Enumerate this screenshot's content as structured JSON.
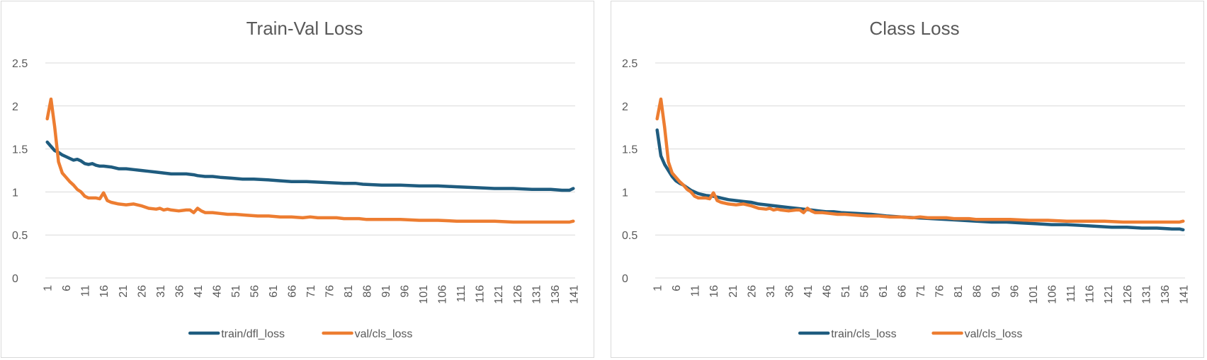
{
  "chart_data": [
    {
      "type": "line",
      "title": "Train-Val Loss",
      "xlabel": "",
      "ylabel": "",
      "ylim": [
        0,
        2.5
      ],
      "y_ticks": [
        "0",
        "0.5",
        "1",
        "1.5",
        "2",
        "2.5"
      ],
      "x_range": [
        1,
        141
      ],
      "x_tick_labels": [
        "1",
        "6",
        "11",
        "16",
        "21",
        "26",
        "31",
        "36",
        "41",
        "46",
        "51",
        "56",
        "61",
        "66",
        "71",
        "76",
        "81",
        "86",
        "91",
        "96",
        "101",
        "106",
        "111",
        "116",
        "121",
        "126",
        "131",
        "136",
        "141"
      ],
      "grid": "horizontal",
      "legend": "bottom",
      "series": [
        {
          "name": "train/dfl_loss",
          "color": "#1f5c7f",
          "points": [
            [
              1,
              1.58
            ],
            [
              2,
              1.53
            ],
            [
              3,
              1.48
            ],
            [
              4,
              1.46
            ],
            [
              5,
              1.43
            ],
            [
              6,
              1.41
            ],
            [
              7,
              1.39
            ],
            [
              8,
              1.37
            ],
            [
              9,
              1.38
            ],
            [
              10,
              1.36
            ],
            [
              11,
              1.33
            ],
            [
              12,
              1.32
            ],
            [
              13,
              1.33
            ],
            [
              14,
              1.31
            ],
            [
              15,
              1.3
            ],
            [
              16,
              1.3
            ],
            [
              18,
              1.29
            ],
            [
              20,
              1.27
            ],
            [
              22,
              1.27
            ],
            [
              24,
              1.26
            ],
            [
              26,
              1.25
            ],
            [
              28,
              1.24
            ],
            [
              30,
              1.23
            ],
            [
              32,
              1.22
            ],
            [
              34,
              1.21
            ],
            [
              36,
              1.21
            ],
            [
              38,
              1.21
            ],
            [
              40,
              1.2
            ],
            [
              41,
              1.19
            ],
            [
              43,
              1.18
            ],
            [
              45,
              1.18
            ],
            [
              47,
              1.17
            ],
            [
              50,
              1.16
            ],
            [
              53,
              1.15
            ],
            [
              56,
              1.15
            ],
            [
              60,
              1.14
            ],
            [
              63,
              1.13
            ],
            [
              66,
              1.12
            ],
            [
              70,
              1.12
            ],
            [
              75,
              1.11
            ],
            [
              80,
              1.1
            ],
            [
              83,
              1.1
            ],
            [
              85,
              1.09
            ],
            [
              90,
              1.08
            ],
            [
              95,
              1.08
            ],
            [
              100,
              1.07
            ],
            [
              105,
              1.07
            ],
            [
              110,
              1.06
            ],
            [
              115,
              1.05
            ],
            [
              120,
              1.04
            ],
            [
              125,
              1.04
            ],
            [
              130,
              1.03
            ],
            [
              135,
              1.03
            ],
            [
              138,
              1.02
            ],
            [
              140,
              1.02
            ],
            [
              141,
              1.04
            ]
          ]
        },
        {
          "name": "val/cls_loss",
          "color": "#ed7d31",
          "points": [
            [
              1,
              1.85
            ],
            [
              2,
              2.08
            ],
            [
              3,
              1.75
            ],
            [
              4,
              1.35
            ],
            [
              5,
              1.22
            ],
            [
              6,
              1.17
            ],
            [
              7,
              1.12
            ],
            [
              8,
              1.08
            ],
            [
              9,
              1.03
            ],
            [
              10,
              1.0
            ],
            [
              11,
              0.95
            ],
            [
              12,
              0.93
            ],
            [
              14,
              0.93
            ],
            [
              15,
              0.92
            ],
            [
              16,
              0.99
            ],
            [
              17,
              0.9
            ],
            [
              18,
              0.88
            ],
            [
              20,
              0.86
            ],
            [
              22,
              0.85
            ],
            [
              24,
              0.86
            ],
            [
              26,
              0.84
            ],
            [
              28,
              0.81
            ],
            [
              30,
              0.8
            ],
            [
              31,
              0.81
            ],
            [
              32,
              0.79
            ],
            [
              33,
              0.8
            ],
            [
              34,
              0.79
            ],
            [
              36,
              0.78
            ],
            [
              38,
              0.79
            ],
            [
              39,
              0.79
            ],
            [
              40,
              0.76
            ],
            [
              41,
              0.81
            ],
            [
              42,
              0.78
            ],
            [
              43,
              0.76
            ],
            [
              45,
              0.76
            ],
            [
              47,
              0.75
            ],
            [
              49,
              0.74
            ],
            [
              51,
              0.74
            ],
            [
              54,
              0.73
            ],
            [
              57,
              0.72
            ],
            [
              60,
              0.72
            ],
            [
              63,
              0.71
            ],
            [
              66,
              0.71
            ],
            [
              69,
              0.7
            ],
            [
              71,
              0.71
            ],
            [
              73,
              0.7
            ],
            [
              75,
              0.7
            ],
            [
              78,
              0.7
            ],
            [
              80,
              0.69
            ],
            [
              84,
              0.69
            ],
            [
              86,
              0.68
            ],
            [
              90,
              0.68
            ],
            [
              95,
              0.68
            ],
            [
              100,
              0.67
            ],
            [
              105,
              0.67
            ],
            [
              110,
              0.66
            ],
            [
              115,
              0.66
            ],
            [
              120,
              0.66
            ],
            [
              125,
              0.65
            ],
            [
              130,
              0.65
            ],
            [
              135,
              0.65
            ],
            [
              140,
              0.65
            ],
            [
              141,
              0.66
            ]
          ]
        }
      ]
    },
    {
      "type": "line",
      "title": "Class Loss",
      "xlabel": "",
      "ylabel": "",
      "ylim": [
        0,
        2.5
      ],
      "y_ticks": [
        "0",
        "0.5",
        "1",
        "1.5",
        "2",
        "2.5"
      ],
      "x_range": [
        1,
        141
      ],
      "x_tick_labels": [
        "1",
        "6",
        "11",
        "16",
        "21",
        "26",
        "31",
        "36",
        "41",
        "46",
        "51",
        "56",
        "61",
        "66",
        "71",
        "76",
        "81",
        "86",
        "91",
        "96",
        "101",
        "106",
        "111",
        "116",
        "121",
        "126",
        "131",
        "136",
        "141"
      ],
      "grid": "horizontal",
      "legend": "bottom",
      "series": [
        {
          "name": "train/cls_loss",
          "color": "#1f5c7f",
          "points": [
            [
              1,
              1.72
            ],
            [
              2,
              1.42
            ],
            [
              3,
              1.32
            ],
            [
              4,
              1.25
            ],
            [
              5,
              1.18
            ],
            [
              6,
              1.13
            ],
            [
              7,
              1.1
            ],
            [
              8,
              1.08
            ],
            [
              9,
              1.05
            ],
            [
              10,
              1.02
            ],
            [
              11,
              1.0
            ],
            [
              12,
              0.98
            ],
            [
              14,
              0.96
            ],
            [
              16,
              0.95
            ],
            [
              18,
              0.93
            ],
            [
              20,
              0.91
            ],
            [
              22,
              0.9
            ],
            [
              24,
              0.89
            ],
            [
              26,
              0.88
            ],
            [
              28,
              0.86
            ],
            [
              30,
              0.85
            ],
            [
              32,
              0.84
            ],
            [
              34,
              0.83
            ],
            [
              36,
              0.82
            ],
            [
              38,
              0.81
            ],
            [
              40,
              0.8
            ],
            [
              42,
              0.79
            ],
            [
              44,
              0.78
            ],
            [
              46,
              0.77
            ],
            [
              48,
              0.77
            ],
            [
              50,
              0.76
            ],
            [
              54,
              0.75
            ],
            [
              58,
              0.74
            ],
            [
              62,
              0.72
            ],
            [
              66,
              0.71
            ],
            [
              70,
              0.7
            ],
            [
              74,
              0.69
            ],
            [
              78,
              0.68
            ],
            [
              82,
              0.67
            ],
            [
              86,
              0.66
            ],
            [
              90,
              0.65
            ],
            [
              94,
              0.65
            ],
            [
              98,
              0.64
            ],
            [
              102,
              0.63
            ],
            [
              106,
              0.62
            ],
            [
              110,
              0.62
            ],
            [
              114,
              0.61
            ],
            [
              118,
              0.6
            ],
            [
              122,
              0.59
            ],
            [
              126,
              0.59
            ],
            [
              130,
              0.58
            ],
            [
              134,
              0.58
            ],
            [
              138,
              0.57
            ],
            [
              140,
              0.57
            ],
            [
              141,
              0.56
            ]
          ]
        },
        {
          "name": "val/cls_loss",
          "color": "#ed7d31",
          "points": [
            [
              1,
              1.85
            ],
            [
              2,
              2.08
            ],
            [
              3,
              1.75
            ],
            [
              4,
              1.35
            ],
            [
              5,
              1.22
            ],
            [
              6,
              1.17
            ],
            [
              7,
              1.12
            ],
            [
              8,
              1.08
            ],
            [
              9,
              1.03
            ],
            [
              10,
              1.0
            ],
            [
              11,
              0.95
            ],
            [
              12,
              0.93
            ],
            [
              14,
              0.93
            ],
            [
              15,
              0.92
            ],
            [
              16,
              0.99
            ],
            [
              17,
              0.9
            ],
            [
              18,
              0.88
            ],
            [
              20,
              0.86
            ],
            [
              22,
              0.85
            ],
            [
              24,
              0.86
            ],
            [
              26,
              0.84
            ],
            [
              28,
              0.81
            ],
            [
              30,
              0.8
            ],
            [
              31,
              0.81
            ],
            [
              32,
              0.79
            ],
            [
              33,
              0.8
            ],
            [
              34,
              0.79
            ],
            [
              36,
              0.78
            ],
            [
              38,
              0.79
            ],
            [
              39,
              0.79
            ],
            [
              40,
              0.76
            ],
            [
              41,
              0.81
            ],
            [
              42,
              0.78
            ],
            [
              43,
              0.76
            ],
            [
              45,
              0.76
            ],
            [
              47,
              0.75
            ],
            [
              49,
              0.74
            ],
            [
              51,
              0.74
            ],
            [
              54,
              0.73
            ],
            [
              57,
              0.72
            ],
            [
              60,
              0.72
            ],
            [
              63,
              0.71
            ],
            [
              66,
              0.71
            ],
            [
              69,
              0.7
            ],
            [
              71,
              0.71
            ],
            [
              73,
              0.7
            ],
            [
              75,
              0.7
            ],
            [
              78,
              0.7
            ],
            [
              80,
              0.69
            ],
            [
              84,
              0.69
            ],
            [
              86,
              0.68
            ],
            [
              90,
              0.68
            ],
            [
              95,
              0.68
            ],
            [
              100,
              0.67
            ],
            [
              105,
              0.67
            ],
            [
              110,
              0.66
            ],
            [
              115,
              0.66
            ],
            [
              120,
              0.66
            ],
            [
              125,
              0.65
            ],
            [
              130,
              0.65
            ],
            [
              135,
              0.65
            ],
            [
              140,
              0.65
            ],
            [
              141,
              0.66
            ]
          ]
        }
      ]
    }
  ]
}
